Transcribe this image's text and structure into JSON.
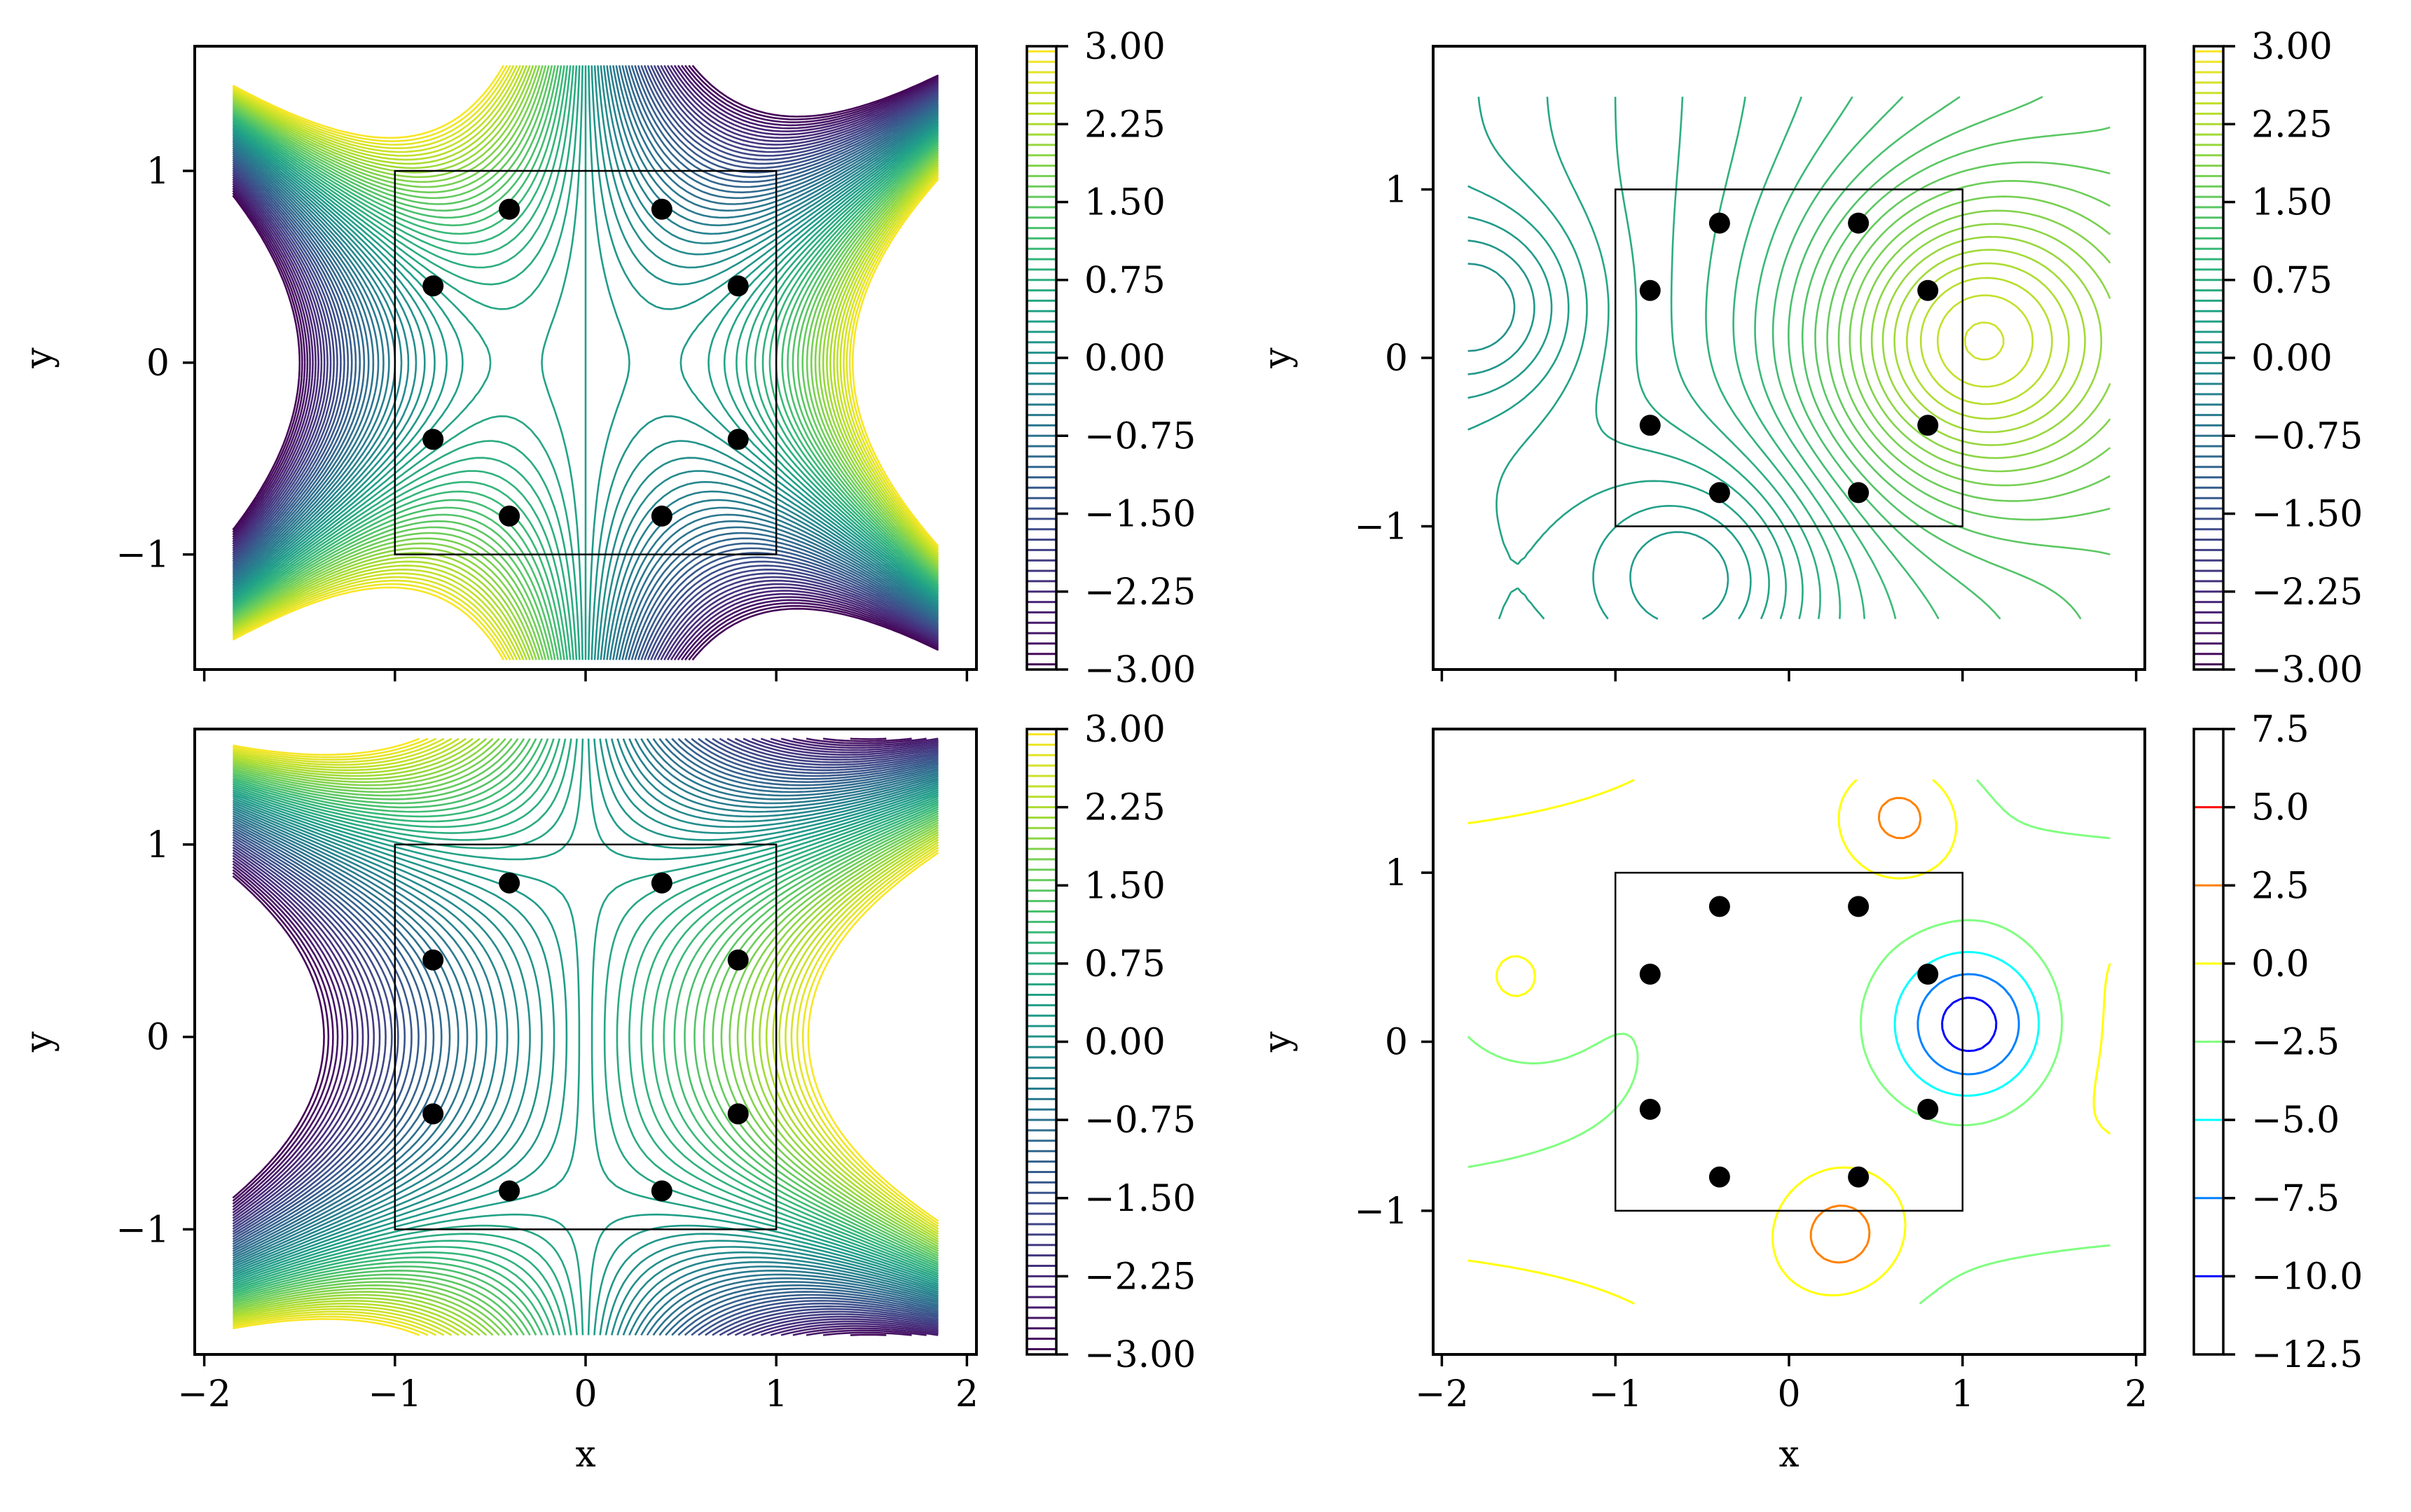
{
  "chart_data": [
    {
      "type": "contour",
      "panel": "top-left",
      "xlabel": "",
      "ylabel": "y",
      "xlim": [
        -2.05,
        2.05
      ],
      "ylim": [
        -1.6,
        1.65
      ],
      "xticks": [
        -2,
        -1,
        0,
        1,
        2
      ],
      "xtick_labels": [
        "",
        "",
        "",
        "",
        ""
      ],
      "yticks": [
        -1,
        0,
        1
      ],
      "ytick_labels": [
        "−1",
        "0",
        "1"
      ],
      "colormap": "viridis",
      "colorbar": {
        "range": [
          -3.0,
          3.0
        ],
        "ticks": [
          3.0,
          2.25,
          1.5,
          0.75,
          0.0,
          -0.75,
          -1.5,
          -2.25,
          -3.0
        ],
        "tick_labels": [
          "3.00",
          "2.25",
          "1.50",
          "0.75",
          "0.00",
          "−0.75",
          "−1.50",
          "−2.25",
          "−3.00"
        ]
      },
      "box": {
        "x": [
          -1,
          1
        ],
        "y": [
          -1,
          1
        ]
      },
      "points": [
        {
          "x": -0.4,
          "y": 0.8
        },
        {
          "x": 0.4,
          "y": 0.8
        },
        {
          "x": -0.8,
          "y": 0.4
        },
        {
          "x": 0.8,
          "y": 0.4
        },
        {
          "x": -0.8,
          "y": -0.4
        },
        {
          "x": 0.8,
          "y": -0.4
        },
        {
          "x": -0.4,
          "y": -0.8
        },
        {
          "x": 0.4,
          "y": -0.8
        }
      ]
    },
    {
      "type": "contour",
      "panel": "top-right",
      "xlabel": "",
      "ylabel": "y",
      "xlim": [
        -2.05,
        2.05
      ],
      "ylim": [
        -1.85,
        1.85
      ],
      "xticks": [
        -2,
        -1,
        0,
        1,
        2
      ],
      "xtick_labels": [
        "",
        "",
        "",
        "",
        ""
      ],
      "yticks": [
        -1,
        0,
        1
      ],
      "ytick_labels": [
        "−1",
        "0",
        "1"
      ],
      "colormap": "viridis",
      "colorbar": {
        "range": [
          -3.0,
          3.0
        ],
        "ticks": [
          3.0,
          2.25,
          1.5,
          0.75,
          0.0,
          -0.75,
          -1.5,
          -2.25,
          -3.0
        ],
        "tick_labels": [
          "3.00",
          "2.25",
          "1.50",
          "0.75",
          "0.00",
          "−0.75",
          "−1.50",
          "−2.25",
          "−3.00"
        ]
      },
      "box": {
        "x": [
          -1,
          1
        ],
        "y": [
          -1,
          1
        ]
      },
      "points": [
        {
          "x": -0.4,
          "y": 0.8
        },
        {
          "x": 0.4,
          "y": 0.8
        },
        {
          "x": -0.8,
          "y": 0.4
        },
        {
          "x": 0.8,
          "y": 0.4
        },
        {
          "x": -0.8,
          "y": -0.4
        },
        {
          "x": 0.8,
          "y": -0.4
        },
        {
          "x": -0.4,
          "y": -0.8
        },
        {
          "x": 0.4,
          "y": -0.8
        }
      ]
    },
    {
      "type": "contour",
      "panel": "bottom-left",
      "xlabel": "x",
      "ylabel": "y",
      "xlim": [
        -2.05,
        2.05
      ],
      "ylim": [
        -1.65,
        1.6
      ],
      "xticks": [
        -2,
        -1,
        0,
        1,
        2
      ],
      "xtick_labels": [
        "−2",
        "−1",
        "0",
        "1",
        "2"
      ],
      "yticks": [
        -1,
        0,
        1
      ],
      "ytick_labels": [
        "−1",
        "0",
        "1"
      ],
      "colormap": "viridis",
      "colorbar": {
        "range": [
          -3.0,
          3.0
        ],
        "ticks": [
          3.0,
          2.25,
          1.5,
          0.75,
          0.0,
          -0.75,
          -1.5,
          -2.25,
          -3.0
        ],
        "tick_labels": [
          "3.00",
          "2.25",
          "1.50",
          "0.75",
          "0.00",
          "−0.75",
          "−1.50",
          "−2.25",
          "−3.00"
        ]
      },
      "box": {
        "x": [
          -1,
          1
        ],
        "y": [
          -1,
          1
        ]
      },
      "points": [
        {
          "x": -0.4,
          "y": 0.8
        },
        {
          "x": 0.4,
          "y": 0.8
        },
        {
          "x": -0.8,
          "y": 0.4
        },
        {
          "x": 0.8,
          "y": 0.4
        },
        {
          "x": -0.8,
          "y": -0.4
        },
        {
          "x": 0.8,
          "y": -0.4
        },
        {
          "x": -0.4,
          "y": -0.8
        },
        {
          "x": 0.4,
          "y": -0.8
        }
      ]
    },
    {
      "type": "contour",
      "panel": "bottom-right",
      "xlabel": "x",
      "ylabel": "y",
      "xlim": [
        -2.05,
        2.05
      ],
      "ylim": [
        -1.85,
        1.85
      ],
      "xticks": [
        -2,
        -1,
        0,
        1,
        2
      ],
      "xtick_labels": [
        "−2",
        "−1",
        "0",
        "1",
        "2"
      ],
      "yticks": [
        -1,
        0,
        1
      ],
      "ytick_labels": [
        "−1",
        "0",
        "1"
      ],
      "colormap": "jet",
      "colorbar": {
        "range": [
          -12.5,
          7.5
        ],
        "ticks": [
          7.5,
          5.0,
          2.5,
          0.0,
          -2.5,
          -5.0,
          -7.5,
          -10.0,
          -12.5
        ],
        "tick_labels": [
          "7.5",
          "5.0",
          "2.5",
          "0.0",
          "−2.5",
          "−5.0",
          "−7.5",
          "−10.0",
          "−12.5"
        ]
      },
      "box": {
        "x": [
          -1,
          1
        ],
        "y": [
          -1,
          1
        ]
      },
      "points": [
        {
          "x": -0.4,
          "y": 0.8
        },
        {
          "x": 0.4,
          "y": 0.8
        },
        {
          "x": -0.8,
          "y": 0.4
        },
        {
          "x": 0.8,
          "y": 0.4
        },
        {
          "x": -0.8,
          "y": -0.4
        },
        {
          "x": 0.8,
          "y": -0.4
        },
        {
          "x": -0.4,
          "y": -0.8
        },
        {
          "x": 0.4,
          "y": -0.8
        }
      ]
    }
  ]
}
